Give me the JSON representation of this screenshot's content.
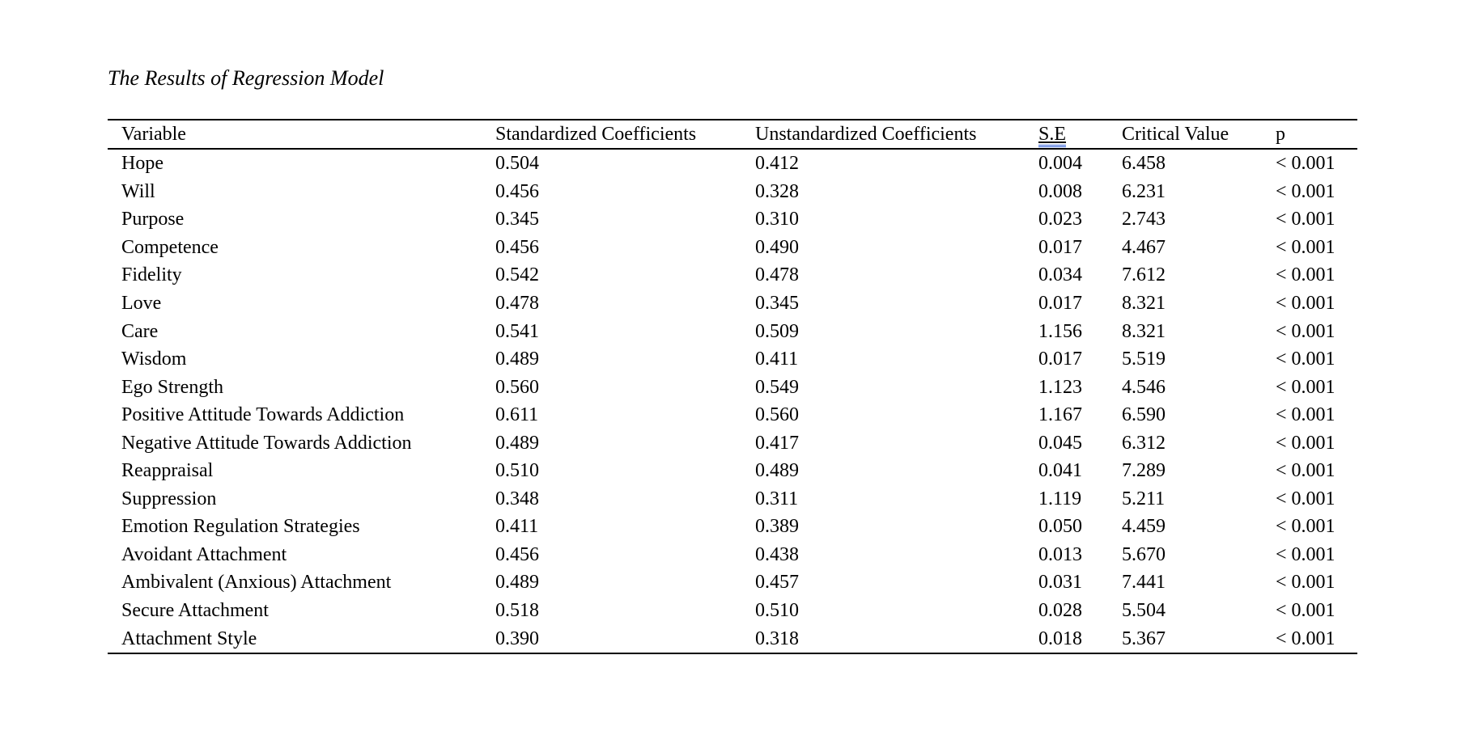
{
  "title": "The Results of Regression Model",
  "grammar_underline_color": "#2e5cd6",
  "table": {
    "columns": [
      "Variable",
      "Standardized Coefficients",
      "Unstandardized Coefficients",
      "S.E",
      "Critical Value",
      "p"
    ],
    "rows": [
      [
        "Hope",
        "0.504",
        "0.412",
        "0.004",
        "6.458",
        "< 0.001"
      ],
      [
        "Will",
        "0.456",
        "0.328",
        "0.008",
        "6.231",
        "< 0.001"
      ],
      [
        "Purpose",
        "0.345",
        "0.310",
        "0.023",
        "2.743",
        "< 0.001"
      ],
      [
        "Competence",
        "0.456",
        "0.490",
        "0.017",
        "4.467",
        "< 0.001"
      ],
      [
        "Fidelity",
        "0.542",
        "0.478",
        "0.034",
        "7.612",
        "< 0.001"
      ],
      [
        "Love",
        "0.478",
        "0.345",
        "0.017",
        "8.321",
        "< 0.001"
      ],
      [
        "Care",
        "0.541",
        "0.509",
        "1.156",
        "8.321",
        "< 0.001"
      ],
      [
        "Wisdom",
        "0.489",
        "0.411",
        "0.017",
        "5.519",
        "< 0.001"
      ],
      [
        "Ego Strength",
        "0.560",
        "0.549",
        "1.123",
        "4.546",
        "< 0.001"
      ],
      [
        "Positive Attitude Towards Addiction",
        "0.611",
        "0.560",
        "1.167",
        "6.590",
        "< 0.001"
      ],
      [
        "Negative Attitude Towards Addiction",
        "0.489",
        "0.417",
        "0.045",
        "6.312",
        "< 0.001"
      ],
      [
        "Reappraisal",
        "0.510",
        "0.489",
        "0.041",
        "7.289",
        "< 0.001"
      ],
      [
        "Suppression",
        "0.348",
        "0.311",
        "1.119",
        "5.211",
        "< 0.001"
      ],
      [
        "Emotion Regulation Strategies",
        "0.411",
        "0.389",
        "0.050",
        "4.459",
        "< 0.001"
      ],
      [
        "Avoidant Attachment",
        "0.456",
        "0.438",
        "0.013",
        "5.670",
        "< 0.001"
      ],
      [
        "Ambivalent (Anxious) Attachment",
        "0.489",
        "0.457",
        "0.031",
        "7.441",
        "< 0.001"
      ],
      [
        "Secure Attachment",
        "0.518",
        "0.510",
        "0.028",
        "5.504",
        "< 0.001"
      ],
      [
        "Attachment Style",
        "0.390",
        "0.318",
        "0.018",
        "5.367",
        "< 0.001"
      ]
    ]
  }
}
